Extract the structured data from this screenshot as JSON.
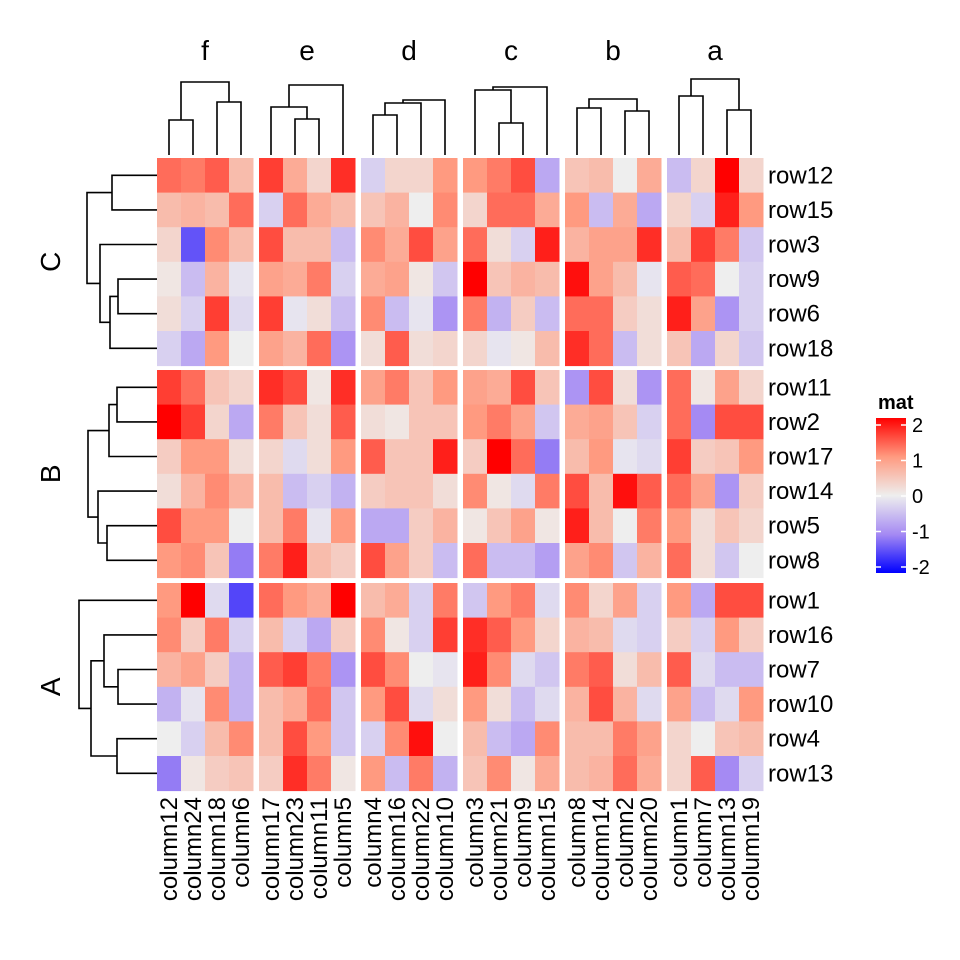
{
  "chart_data": {
    "type": "heatmap",
    "title": "",
    "color_scale": {
      "name": "mat",
      "min": -2,
      "max": 2,
      "ticks": [
        "2",
        "1",
        "0",
        "-1",
        "-2"
      ],
      "low": "#0000ff",
      "mid": "#eeeeee",
      "high": "#ff0000"
    },
    "column_slices": [
      {
        "title": "f",
        "columns": [
          "column12",
          "column24",
          "column18",
          "column6"
        ]
      },
      {
        "title": "e",
        "columns": [
          "column17",
          "column23",
          "column11",
          "column5"
        ]
      },
      {
        "title": "d",
        "columns": [
          "column4",
          "column16",
          "column22",
          "column10"
        ]
      },
      {
        "title": "c",
        "columns": [
          "column3",
          "column21",
          "column9",
          "column15"
        ]
      },
      {
        "title": "b",
        "columns": [
          "column8",
          "column14",
          "column2",
          "column20"
        ]
      },
      {
        "title": "a",
        "columns": [
          "column1",
          "column7",
          "column13",
          "column19"
        ]
      }
    ],
    "row_slices": [
      {
        "title": "C",
        "rows": [
          "row12",
          "row15",
          "row3",
          "row9",
          "row6",
          "row18"
        ]
      },
      {
        "title": "B",
        "rows": [
          "row11",
          "row2",
          "row17",
          "row14",
          "row5",
          "row8"
        ]
      },
      {
        "title": "A",
        "rows": [
          "row1",
          "row16",
          "row7",
          "row10",
          "row4",
          "row13"
        ]
      }
    ],
    "values": [
      [
        1.3,
        1.2,
        1.4,
        0.6,
        1.6,
        0.8,
        0.3,
        1.7,
        -0.3,
        0.3,
        0.3,
        1.0,
        1.0,
        1.2,
        1.5,
        -0.7,
        0.5,
        0.6,
        0.0,
        0.8,
        -0.5,
        0.3,
        2.1,
        0.3
      ],
      [
        0.6,
        0.7,
        0.6,
        1.3,
        -0.3,
        1.3,
        0.8,
        0.6,
        0.5,
        0.7,
        0.0,
        1.1,
        0.3,
        1.3,
        1.3,
        0.8,
        1.0,
        -0.5,
        0.8,
        -0.7,
        0.3,
        -0.3,
        1.8,
        1.0
      ],
      [
        0.3,
        -1.4,
        1.1,
        0.6,
        1.5,
        0.6,
        0.6,
        -0.5,
        1.1,
        0.8,
        1.5,
        0.9,
        1.3,
        0.2,
        -0.3,
        1.8,
        0.7,
        0.9,
        0.9,
        1.7,
        0.6,
        1.6,
        1.2,
        -0.4
      ],
      [
        0.1,
        -0.5,
        0.7,
        -0.1,
        0.9,
        0.8,
        1.2,
        -0.3,
        0.8,
        0.9,
        0.1,
        -0.4,
        2.1,
        0.5,
        0.7,
        0.6,
        1.9,
        0.9,
        0.6,
        -0.1,
        1.4,
        1.3,
        0.0,
        -0.3
      ],
      [
        0.2,
        -0.3,
        1.6,
        -0.2,
        1.6,
        -0.1,
        0.2,
        -0.5,
        1.1,
        -0.5,
        -0.1,
        -0.9,
        1.2,
        -0.6,
        0.4,
        -0.5,
        1.3,
        1.3,
        0.4,
        0.2,
        1.8,
        0.9,
        -0.9,
        -0.3
      ],
      [
        -0.3,
        -0.7,
        1.0,
        0.0,
        0.9,
        0.7,
        1.3,
        -0.9,
        0.2,
        1.4,
        0.2,
        0.3,
        0.3,
        -0.1,
        0.1,
        0.6,
        1.7,
        1.3,
        -0.5,
        0.2,
        0.5,
        -0.7,
        0.3,
        -0.4
      ],
      [
        1.6,
        1.3,
        0.5,
        0.3,
        1.7,
        1.5,
        0.1,
        1.7,
        0.9,
        1.2,
        0.5,
        1.0,
        0.9,
        0.8,
        1.5,
        0.5,
        -0.9,
        1.5,
        0.2,
        -0.9,
        1.3,
        0.1,
        0.9,
        0.3
      ],
      [
        2.1,
        1.6,
        0.3,
        -0.7,
        1.2,
        0.5,
        0.2,
        1.4,
        0.2,
        0.1,
        0.5,
        0.5,
        1.0,
        1.2,
        0.9,
        -0.4,
        0.8,
        0.9,
        0.5,
        -0.3,
        1.3,
        -1.0,
        1.5,
        1.5
      ],
      [
        0.4,
        1.0,
        1.0,
        0.2,
        0.3,
        -0.2,
        0.2,
        1.0,
        1.4,
        0.5,
        0.5,
        1.8,
        0.4,
        2.1,
        1.3,
        -1.1,
        0.6,
        1.0,
        -0.1,
        -0.2,
        1.6,
        0.4,
        0.5,
        1.0
      ],
      [
        0.2,
        0.7,
        1.1,
        0.7,
        0.6,
        -0.5,
        -0.3,
        -0.6,
        0.4,
        0.5,
        0.5,
        0.2,
        1.1,
        0.1,
        -0.2,
        1.2,
        1.5,
        0.6,
        1.9,
        1.4,
        1.3,
        0.9,
        -0.9,
        0.4
      ],
      [
        1.5,
        1.0,
        1.0,
        0.0,
        0.6,
        1.2,
        -0.1,
        1.0,
        -0.7,
        -0.7,
        0.4,
        0.7,
        0.1,
        0.5,
        0.9,
        0.1,
        1.8,
        0.6,
        0.0,
        1.2,
        1.0,
        0.2,
        0.5,
        0.3
      ],
      [
        1.0,
        1.1,
        0.5,
        -1.1,
        1.2,
        1.8,
        0.6,
        0.4,
        1.5,
        0.9,
        0.4,
        -0.5,
        1.3,
        -0.5,
        -0.5,
        -0.8,
        0.9,
        1.1,
        -0.4,
        0.7,
        1.3,
        0.2,
        -0.4,
        0.0
      ],
      [
        1.0,
        2.1,
        -0.2,
        -1.5,
        1.3,
        1.0,
        0.8,
        2.1,
        0.6,
        0.8,
        -0.3,
        1.2,
        -0.4,
        1.0,
        1.2,
        -0.2,
        1.1,
        0.3,
        0.9,
        -0.3,
        1.0,
        -0.7,
        1.5,
        1.5
      ],
      [
        1.1,
        0.4,
        1.2,
        -0.3,
        0.6,
        -0.3,
        -0.7,
        0.4,
        1.1,
        0.1,
        -0.3,
        1.6,
        1.7,
        1.4,
        1.0,
        0.3,
        0.7,
        0.6,
        -0.2,
        -0.3,
        0.4,
        -0.3,
        1.0,
        0.4
      ],
      [
        0.7,
        0.9,
        0.4,
        -0.6,
        1.4,
        1.6,
        1.2,
        -0.9,
        1.5,
        1.1,
        0.0,
        -0.1,
        1.8,
        1.1,
        -0.2,
        -0.4,
        1.2,
        1.4,
        0.2,
        0.6,
        1.4,
        -0.2,
        -0.5,
        -0.5
      ],
      [
        -0.6,
        -0.1,
        1.1,
        -0.6,
        0.6,
        0.8,
        1.3,
        -0.4,
        1.0,
        1.5,
        -0.2,
        0.2,
        1.0,
        0.2,
        -0.5,
        -0.2,
        0.7,
        1.5,
        0.7,
        -0.2,
        0.9,
        -0.5,
        -0.2,
        1.0
      ],
      [
        0.0,
        -0.3,
        0.6,
        1.1,
        0.6,
        1.5,
        1.0,
        -0.4,
        -0.3,
        1.1,
        1.9,
        0.0,
        0.6,
        -0.5,
        -0.7,
        1.1,
        0.6,
        0.6,
        1.2,
        0.9,
        0.3,
        0.0,
        0.5,
        0.6
      ],
      [
        -1.1,
        0.1,
        0.4,
        0.5,
        0.4,
        1.7,
        1.2,
        0.1,
        1.0,
        -0.5,
        1.2,
        -0.6,
        0.5,
        1.1,
        0.1,
        0.8,
        0.6,
        0.7,
        1.3,
        0.8,
        0.3,
        1.4,
        -1.0,
        -0.3
      ]
    ],
    "legend_placement": "right"
  }
}
